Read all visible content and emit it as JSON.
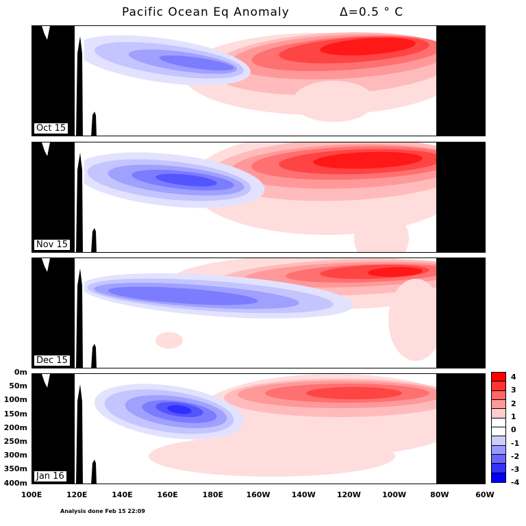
{
  "chart_data": {
    "type": "heatmap",
    "title": "Pacific Ocean Eq Anomaly",
    "interval": "Δ=0.5 ° C",
    "footer": "Analysis done Feb 15 22:09",
    "panels": [
      {
        "label": "Oct 15"
      },
      {
        "label": "Nov 15"
      },
      {
        "label": "Dec 15"
      },
      {
        "label": "Jan 16"
      }
    ],
    "y_ticks": [
      "0m",
      "50m",
      "100m",
      "150m",
      "200m",
      "250m",
      "300m",
      "350m",
      "400m"
    ],
    "x_ticks": [
      "100E",
      "120E",
      "140E",
      "160E",
      "180E",
      "160W",
      "140W",
      "120W",
      "100W",
      "80W",
      "60W"
    ],
    "colorbar": {
      "ticks": [
        "4",
        "3",
        "2",
        "1",
        "0",
        "-1",
        "-2",
        "-3",
        "-4"
      ],
      "colors": [
        "#ff0000",
        "#ff3333",
        "#ff6666",
        "#ff9999",
        "#ffcccc",
        "#ffffff",
        "#ffffff",
        "#ccccff",
        "#9999ff",
        "#6666ff",
        "#3333ff",
        "#0000ff"
      ]
    },
    "colors": {
      "warm_max": "#ff0000",
      "cold_max": "#0000ff",
      "land": "#000000"
    }
  }
}
